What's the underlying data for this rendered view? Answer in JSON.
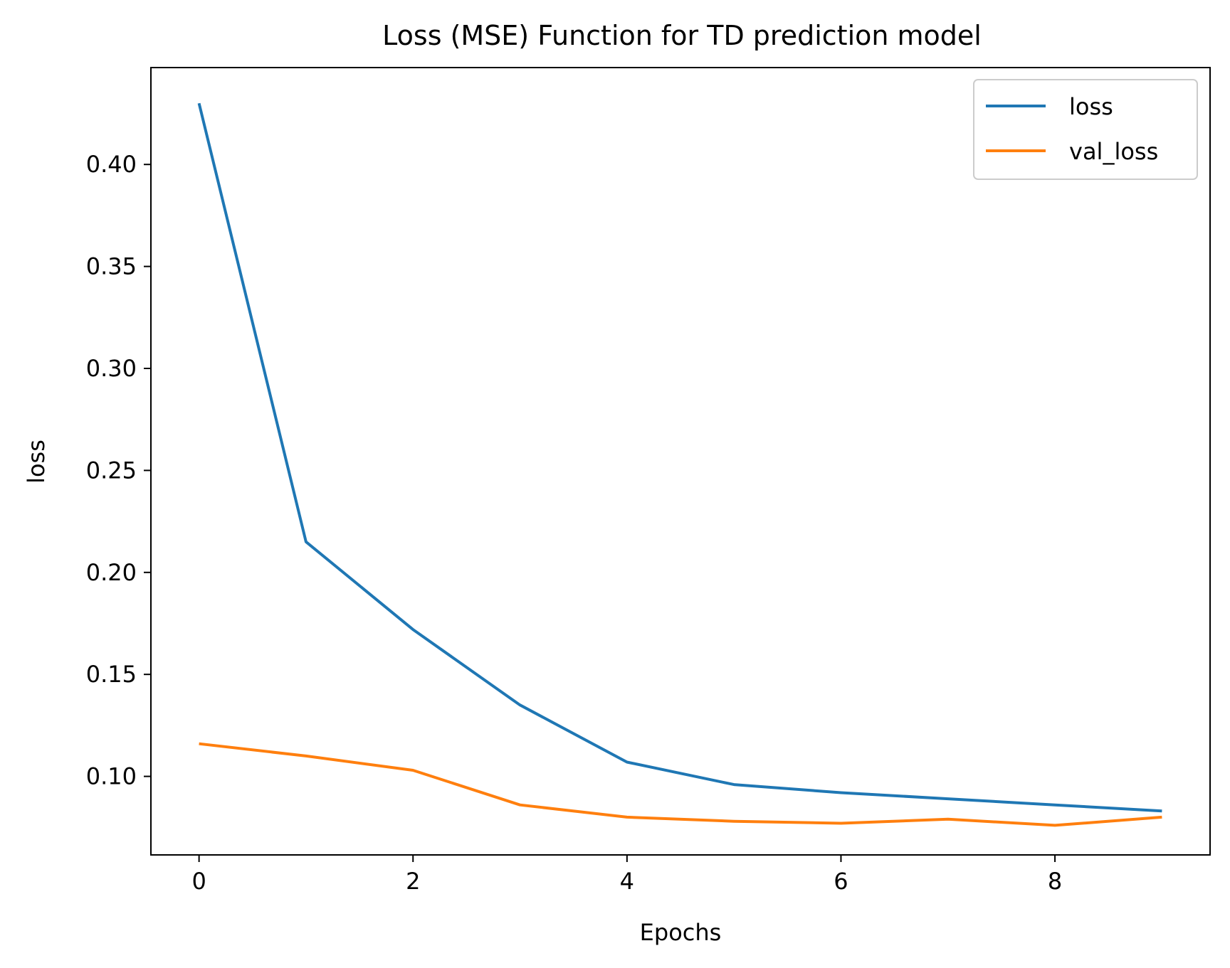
{
  "chart_data": {
    "type": "line",
    "title": "Loss (MSE) Function for TD prediction model",
    "xlabel": "Epochs",
    "ylabel": "loss",
    "xlim": [
      -0.45,
      9.45
    ],
    "ylim": [
      0.0615,
      0.4475
    ],
    "xticks": [
      0,
      2,
      4,
      6,
      8
    ],
    "yticks": [
      0.1,
      0.15,
      0.2,
      0.25,
      0.3,
      0.35,
      0.4
    ],
    "xtick_labels": [
      "0",
      "2",
      "4",
      "6",
      "8"
    ],
    "ytick_labels": [
      "0.10",
      "0.15",
      "0.20",
      "0.25",
      "0.30",
      "0.35",
      "0.40"
    ],
    "grid": false,
    "legend_position": "top-right",
    "x": [
      0,
      1,
      2,
      3,
      4,
      5,
      6,
      7,
      8,
      9
    ],
    "series": [
      {
        "name": "loss",
        "color": "#1f77b4",
        "values": [
          0.43,
          0.215,
          0.172,
          0.135,
          0.107,
          0.096,
          0.092,
          0.089,
          0.086,
          0.083
        ]
      },
      {
        "name": "val_loss",
        "color": "#ff7f0e",
        "values": [
          0.116,
          0.11,
          0.103,
          0.086,
          0.08,
          0.078,
          0.077,
          0.079,
          0.076,
          0.08
        ]
      }
    ]
  }
}
